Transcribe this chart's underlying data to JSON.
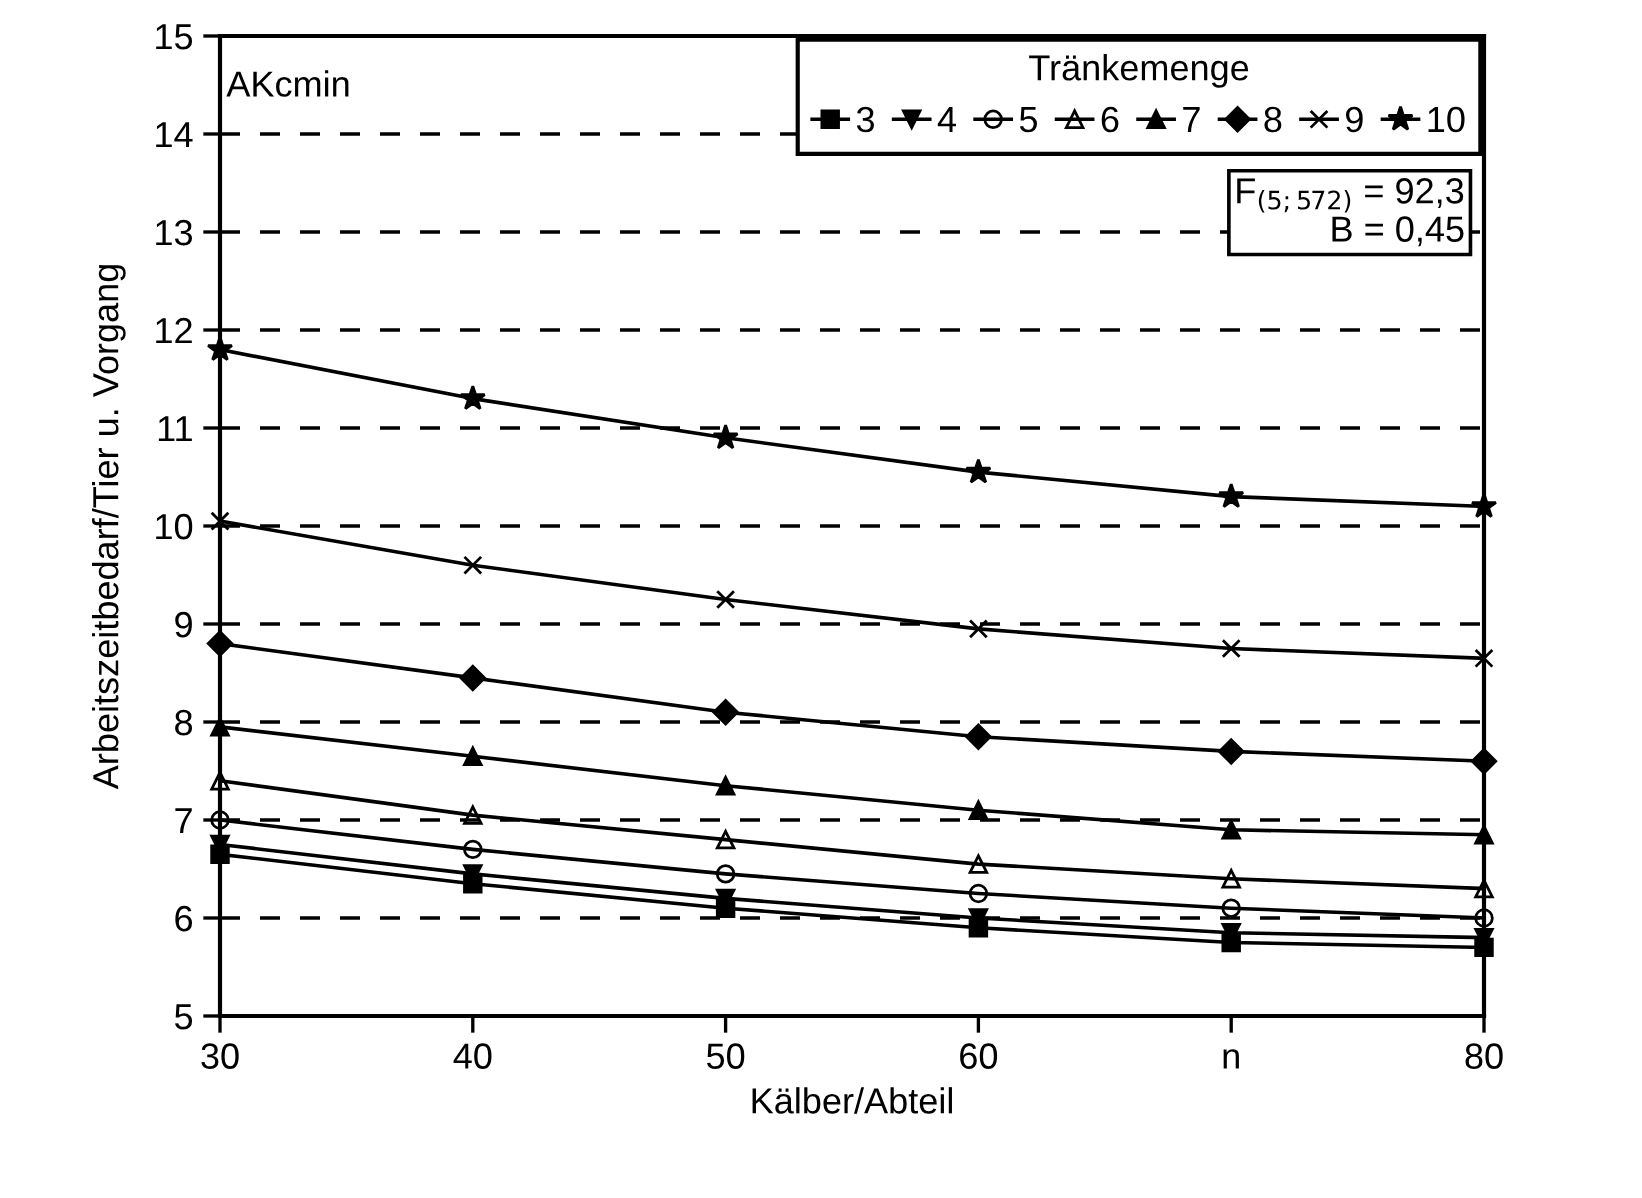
{
  "chart_data": {
    "type": "line",
    "xlabel": "Kälber/Abteil",
    "ylabel": "Arbeitszeitbedarf/Tier u. Vorgang",
    "legend_title": "Tränkemenge",
    "annotations": [
      "AKcmin",
      "F$_{(5;572)}$ = 92,3\nB = 0,45"
    ],
    "x": [
      30,
      40,
      50,
      60,
      70,
      80
    ],
    "series": [
      {
        "name": "3",
        "color": "#000000",
        "marker": "square",
        "values": [
          6.65,
          6.35,
          6.1,
          5.9,
          5.75,
          5.7
        ]
      },
      {
        "name": "4",
        "color": "#000000",
        "marker": "triangle_down",
        "values": [
          6.75,
          6.45,
          6.2,
          6.0,
          5.85,
          5.8
        ]
      },
      {
        "name": "5",
        "color": "#000000",
        "marker": "circle_open",
        "values": [
          7.0,
          6.7,
          6.45,
          6.25,
          6.1,
          6.0
        ]
      },
      {
        "name": "6",
        "color": "#000000",
        "marker": "triangle_open",
        "values": [
          7.4,
          7.05,
          6.8,
          6.55,
          6.4,
          6.3
        ]
      },
      {
        "name": "7",
        "color": "#000000",
        "marker": "triangle",
        "values": [
          7.95,
          7.65,
          7.35,
          7.1,
          6.9,
          6.85
        ]
      },
      {
        "name": "8",
        "color": "#000000",
        "marker": "diamond",
        "values": [
          8.8,
          8.45,
          8.1,
          7.85,
          7.7,
          7.6
        ]
      },
      {
        "name": "9",
        "color": "#000000",
        "marker": "cross",
        "values": [
          10.05,
          9.6,
          9.25,
          8.95,
          8.75,
          8.65
        ]
      },
      {
        "name": "10",
        "color": "#000000",
        "marker": "star",
        "values": [
          11.8,
          11.3,
          10.9,
          10.55,
          10.3,
          10.2
        ]
      }
    ],
    "xlim": [
      30,
      80
    ],
    "xticks": [
      30,
      40,
      50,
      60,
      {
        "value": 70,
        "label": "n"
      },
      80
    ],
    "ylim": [
      5,
      15
    ],
    "yticks": [
      5,
      6,
      7,
      8,
      9,
      10,
      11,
      12,
      13,
      14,
      15
    ],
    "grid": "y",
    "legend": "top right",
    "line_style": "solid"
  }
}
